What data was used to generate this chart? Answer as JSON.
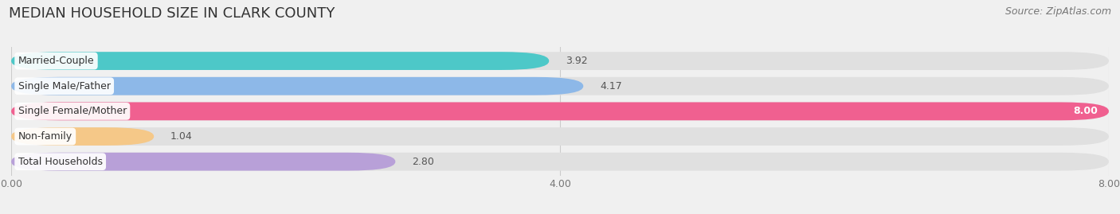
{
  "title": "MEDIAN HOUSEHOLD SIZE IN CLARK COUNTY",
  "source": "Source: ZipAtlas.com",
  "categories": [
    "Married-Couple",
    "Single Male/Father",
    "Single Female/Mother",
    "Non-family",
    "Total Households"
  ],
  "values": [
    3.92,
    4.17,
    8.0,
    1.04,
    2.8
  ],
  "bar_colors": [
    "#4dc8c8",
    "#8db8e8",
    "#f06090",
    "#f5c888",
    "#b8a0d8"
  ],
  "xlim": [
    0,
    8.0
  ],
  "xticks": [
    0.0,
    4.0,
    8.0
  ],
  "xticklabels": [
    "0.00",
    "4.00",
    "8.00"
  ],
  "background_color": "#f0f0f0",
  "bar_background_color": "#e0e0e0",
  "title_fontsize": 13,
  "source_fontsize": 9,
  "label_fontsize": 9,
  "value_fontsize": 9,
  "bar_height": 0.72,
  "bar_gap": 0.06
}
